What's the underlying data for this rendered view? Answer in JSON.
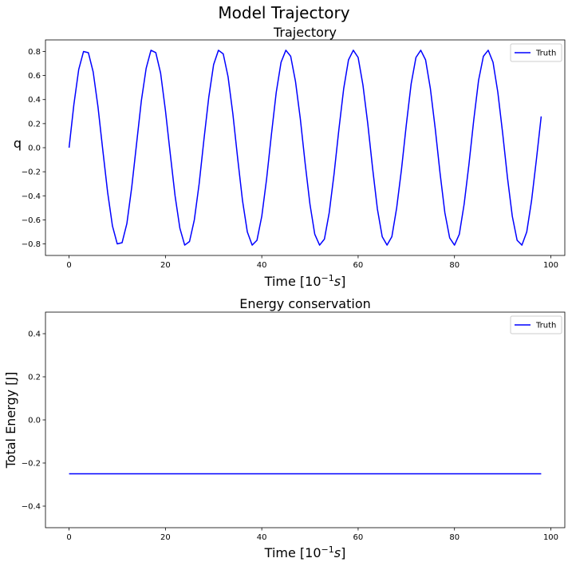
{
  "figure": {
    "suptitle": "Model Trajectory"
  },
  "chart_data": [
    {
      "type": "line",
      "title": "Trajectory",
      "xlabel": "Time [10^{-1}s]",
      "ylabel": "q",
      "xlim": [
        -4.9,
        102.9
      ],
      "ylim": [
        -0.896,
        0.896
      ],
      "xticks": [
        0,
        20,
        40,
        60,
        80,
        100
      ],
      "xtick_labels": [
        "0",
        "20",
        "40",
        "60",
        "80",
        "100"
      ],
      "yticks": [
        -0.8,
        -0.6,
        -0.4,
        -0.2,
        0.0,
        0.2,
        0.4,
        0.6,
        0.8
      ],
      "ytick_labels": [
        "−0.8",
        "−0.6",
        "−0.4",
        "−0.2",
        "0.0",
        "0.2",
        "0.4",
        "0.6",
        "0.8"
      ],
      "legend": {
        "location": "upper right",
        "entries": [
          "Truth"
        ]
      },
      "series": [
        {
          "name": "Truth",
          "color": "#0000ff",
          "x": [
            0,
            1,
            2,
            3,
            4,
            5,
            6,
            7,
            8,
            9,
            10,
            11,
            12,
            13,
            14,
            15,
            16,
            17,
            18,
            19,
            20,
            21,
            22,
            23,
            24,
            25,
            26,
            27,
            28,
            29,
            30,
            31,
            32,
            33,
            34,
            35,
            36,
            37,
            38,
            39,
            40,
            41,
            42,
            43,
            44,
            45,
            46,
            47,
            48,
            49,
            50,
            51,
            52,
            53,
            54,
            55,
            56,
            57,
            58,
            59,
            60,
            61,
            62,
            63,
            64,
            65,
            66,
            67,
            68,
            69,
            70,
            71,
            72,
            73,
            74,
            75,
            76,
            77,
            78,
            79,
            80,
            81,
            82,
            83,
            84,
            85,
            86,
            87,
            88,
            89,
            90,
            91,
            92,
            93,
            94,
            95,
            96,
            97,
            98
          ],
          "y": [
            0.0,
            0.36,
            0.65,
            0.8,
            0.79,
            0.63,
            0.34,
            -0.02,
            -0.37,
            -0.65,
            -0.8,
            -0.79,
            -0.63,
            -0.33,
            0.03,
            0.39,
            0.66,
            0.81,
            0.79,
            0.62,
            0.31,
            -0.05,
            -0.4,
            -0.67,
            -0.81,
            -0.78,
            -0.6,
            -0.3,
            0.07,
            0.42,
            0.69,
            0.81,
            0.78,
            0.59,
            0.28,
            -0.09,
            -0.44,
            -0.7,
            -0.81,
            -0.77,
            -0.57,
            -0.26,
            0.11,
            0.46,
            0.71,
            0.81,
            0.76,
            0.55,
            0.24,
            -0.13,
            -0.47,
            -0.72,
            -0.81,
            -0.76,
            -0.54,
            -0.22,
            0.15,
            0.49,
            0.73,
            0.81,
            0.75,
            0.52,
            0.2,
            -0.17,
            -0.51,
            -0.74,
            -0.81,
            -0.74,
            -0.5,
            -0.18,
            0.19,
            0.53,
            0.75,
            0.81,
            0.73,
            0.49,
            0.16,
            -0.21,
            -0.54,
            -0.75,
            -0.81,
            -0.72,
            -0.47,
            -0.14,
            0.23,
            0.56,
            0.76,
            0.81,
            0.71,
            0.46,
            0.12,
            -0.25,
            -0.57,
            -0.77,
            -0.81,
            -0.7,
            -0.44,
            -0.1,
            0.26
          ]
        }
      ]
    },
    {
      "type": "line",
      "title": "Energy conservation",
      "xlabel": "Time [10^{-1}s]",
      "ylabel": "Total Energy [J]",
      "xlim": [
        -4.9,
        102.9
      ],
      "ylim": [
        -0.5,
        0.5
      ],
      "xticks": [
        0,
        20,
        40,
        60,
        80,
        100
      ],
      "xtick_labels": [
        "0",
        "20",
        "40",
        "60",
        "80",
        "100"
      ],
      "yticks": [
        -0.4,
        -0.2,
        0.0,
        0.2,
        0.4
      ],
      "ytick_labels": [
        "−0.4",
        "−0.2",
        "0.0",
        "0.2",
        "0.4"
      ],
      "legend": {
        "location": "upper right",
        "entries": [
          "Truth"
        ]
      },
      "series": [
        {
          "name": "Truth",
          "color": "#0000ff",
          "x": [
            0,
            98
          ],
          "y": [
            -0.25,
            -0.25
          ]
        }
      ]
    }
  ]
}
